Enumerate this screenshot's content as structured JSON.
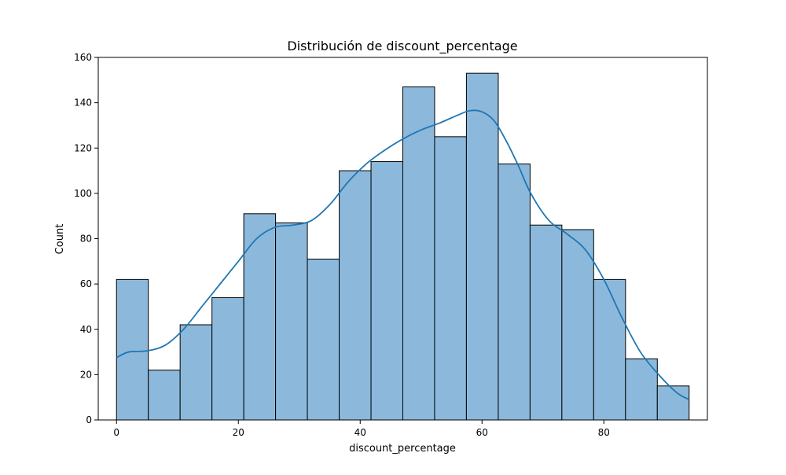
{
  "chart_data": {
    "type": "bar",
    "title": "Distribución de discount_percentage",
    "xlabel": "discount_percentage",
    "ylabel": "Count",
    "xlim": [
      -3,
      97
    ],
    "ylim": [
      0,
      160
    ],
    "xticks": [
      0,
      20,
      40,
      60,
      80
    ],
    "yticks": [
      0,
      20,
      40,
      60,
      80,
      100,
      120,
      140,
      160
    ],
    "bin_edges": [
      0,
      5.22,
      10.44,
      15.67,
      20.89,
      26.11,
      31.33,
      36.56,
      41.78,
      47.0,
      52.22,
      57.44,
      62.67,
      67.89,
      73.11,
      78.33,
      83.56,
      88.78,
      94.0
    ],
    "values": [
      62,
      22,
      42,
      54,
      91,
      87,
      71,
      110,
      114,
      147,
      125,
      153,
      113,
      86,
      84,
      62,
      27,
      15
    ],
    "bar_color": "#8cb9db",
    "bar_edge_color": "#000000",
    "kde_color": "#1f77b4",
    "kde": {
      "x": [
        0,
        2,
        5,
        8,
        11,
        14,
        17,
        20,
        23,
        26,
        29,
        32,
        35,
        38,
        41,
        44,
        47,
        50,
        53,
        56,
        58,
        60,
        62,
        64,
        66,
        68,
        71,
        74,
        77,
        80,
        83,
        86,
        89,
        92,
        94
      ],
      "y": [
        27.5,
        30.0,
        30.5,
        33.0,
        40.0,
        50.0,
        60.0,
        70.0,
        80.0,
        85.0,
        86.0,
        88.0,
        95.0,
        105.0,
        113.0,
        119.0,
        124.0,
        128.0,
        131.0,
        134.5,
        136.5,
        136.0,
        132.0,
        123.0,
        112.0,
        100.0,
        88.0,
        82.0,
        75.0,
        62.0,
        45.0,
        30.0,
        20.0,
        12.0,
        9.0
      ]
    },
    "grid": false,
    "legend": "none"
  }
}
